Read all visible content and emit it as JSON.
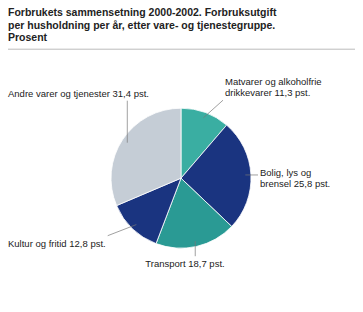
{
  "chart_data": {
    "type": "pie",
    "title": "Forbrukets sammensetning 2000-2002. Forbruksutgift\nper husholdning per år, etter vare- og tjenestegruppe.\nProsent",
    "categories": [
      "Matvarer og alkoholfrie\ndrikkevarer 11,3 pst.",
      "Bolig, lys og\nbrensel 25,8 pst.",
      "Transport 18,7 pst.",
      "Kultur og fritid 12,8 pst.",
      "Andre varer og tjenester 31,4 pst."
    ],
    "values": [
      11.3,
      25.8,
      18.7,
      12.8,
      31.4
    ],
    "colors": [
      "#3aaea2",
      "#1a3480",
      "#2a9a94",
      "#1a3480",
      "#c5cdd6"
    ]
  }
}
